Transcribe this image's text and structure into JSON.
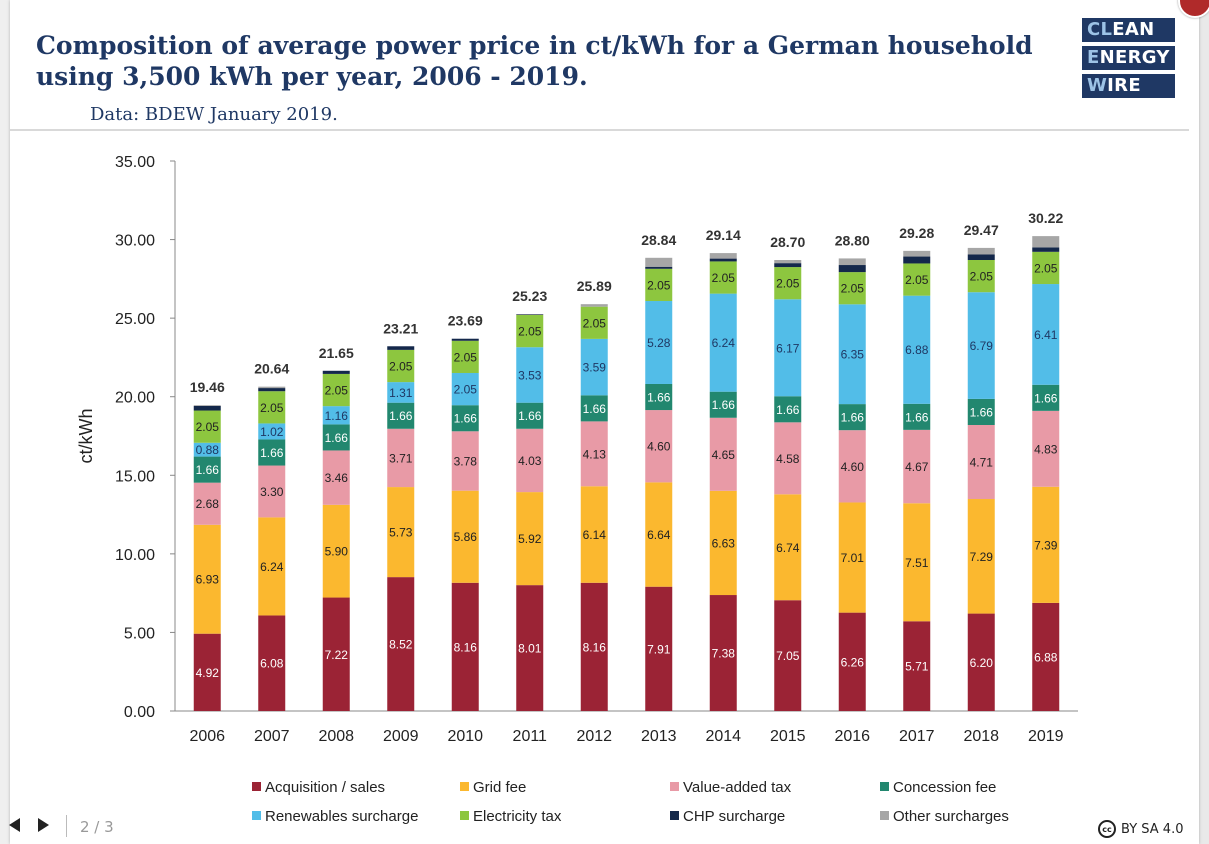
{
  "title": "Composition of average power price in ct/kWh for a German household using 3,500 kWh per year, 2006 - 2019.",
  "subtitle": "Data: BDEW January 2019.",
  "logo": {
    "line1_a": "CL",
    "line1_b": "EAN",
    "line2_a": "E",
    "line2_b": "NERGY",
    "line3_a": "W",
    "line3_b": "IRE"
  },
  "footer": {
    "page": "2 / 3",
    "license": "BY SA 4.0",
    "cc": "cc"
  },
  "chart_data": {
    "type": "bar",
    "stacked": true,
    "ylabel": "ct/kWh",
    "ylim": [
      0,
      35
    ],
    "yticks": [
      "0.00",
      "5.00",
      "10.00",
      "15.00",
      "20.00",
      "25.00",
      "30.00",
      "35.00"
    ],
    "grid": false,
    "legend_position": "bottom",
    "categories": [
      "2006",
      "2007",
      "2008",
      "2009",
      "2010",
      "2011",
      "2012",
      "2013",
      "2014",
      "2015",
      "2016",
      "2017",
      "2018",
      "2019"
    ],
    "totals": [
      "19.46",
      "20.64",
      "21.65",
      "23.21",
      "23.69",
      "25.23",
      "25.89",
      "28.84",
      "29.14",
      "28.70",
      "28.80",
      "29.28",
      "29.47",
      "30.22"
    ],
    "series": [
      {
        "name": "Acquisition / sales",
        "color": "#9b2335",
        "label_color": "#ffffff",
        "values": [
          4.92,
          6.08,
          7.22,
          8.52,
          8.16,
          8.01,
          8.16,
          7.91,
          7.38,
          7.05,
          6.26,
          5.71,
          6.2,
          6.88
        ],
        "labels": [
          "4.92",
          "6.08",
          "7.22",
          "8.52",
          "8.16",
          "8.01",
          "8.16",
          "7.91",
          "7.38",
          "7.05",
          "6.26",
          "5.71",
          "6.20",
          "6.88"
        ]
      },
      {
        "name": "Grid fee",
        "color": "#fbb82f",
        "label_color": "#222222",
        "values": [
          6.93,
          6.24,
          5.9,
          5.73,
          5.86,
          5.92,
          6.14,
          6.64,
          6.63,
          6.74,
          7.01,
          7.51,
          7.29,
          7.39
        ],
        "labels": [
          "6.93",
          "6.24",
          "5.90",
          "5.73",
          "5.86",
          "5.92",
          "6.14",
          "6.64",
          "6.63",
          "6.74",
          "7.01",
          "7.51",
          "7.29",
          "7.39"
        ]
      },
      {
        "name": "Value-added tax",
        "color": "#e89aa6",
        "label_color": "#222222",
        "values": [
          2.68,
          3.3,
          3.46,
          3.71,
          3.78,
          4.03,
          4.13,
          4.6,
          4.65,
          4.58,
          4.6,
          4.67,
          4.71,
          4.83
        ],
        "labels": [
          "2.68",
          "3.30",
          "3.46",
          "3.71",
          "3.78",
          "4.03",
          "4.13",
          "4.60",
          "4.65",
          "4.58",
          "4.60",
          "4.67",
          "4.71",
          "4.83"
        ]
      },
      {
        "name": "Concession fee",
        "color": "#22876f",
        "label_color": "#ffffff",
        "values": [
          1.66,
          1.66,
          1.66,
          1.66,
          1.66,
          1.66,
          1.66,
          1.66,
          1.66,
          1.66,
          1.66,
          1.66,
          1.66,
          1.66
        ],
        "labels": [
          "1.66",
          "1.66",
          "1.66",
          "1.66",
          "1.66",
          "1.66",
          "1.66",
          "1.66",
          "1.66",
          "1.66",
          "1.66",
          "1.66",
          "1.66",
          "1.66"
        ]
      },
      {
        "name": "Renewables surcharge",
        "color": "#52bde8",
        "label_color": "#1f3864",
        "values": [
          0.88,
          1.02,
          1.16,
          1.31,
          2.05,
          3.53,
          3.59,
          5.28,
          6.24,
          6.17,
          6.35,
          6.88,
          6.79,
          6.41
        ],
        "labels": [
          "0.88",
          "1.02",
          "1.16",
          "1.31",
          "2.05",
          "3.53",
          "3.59",
          "5.28",
          "6.24",
          "6.17",
          "6.35",
          "6.88",
          "6.79",
          "6.41"
        ]
      },
      {
        "name": "Electricity tax",
        "color": "#8dc63f",
        "label_color": "#222222",
        "values": [
          2.05,
          2.05,
          2.05,
          2.05,
          2.05,
          2.05,
          2.05,
          2.05,
          2.05,
          2.05,
          2.05,
          2.05,
          2.05,
          2.05
        ],
        "labels": [
          "2.05",
          "2.05",
          "2.05",
          "2.05",
          "2.05",
          "2.05",
          "2.05",
          "2.05",
          "2.05",
          "2.05",
          "2.05",
          "2.05",
          "2.05",
          "2.05"
        ]
      },
      {
        "name": "CHP surcharge",
        "color": "#14284b",
        "label_color": "#ffffff",
        "values": [
          0.29,
          0.2,
          0.2,
          0.23,
          0.13,
          0.03,
          0.0,
          0.13,
          0.18,
          0.25,
          0.45,
          0.44,
          0.35,
          0.28
        ],
        "labels": []
      },
      {
        "name": "Other surcharges",
        "color": "#a6a6a6",
        "label_color": "#222222",
        "values": [
          0.05,
          0.09,
          0.0,
          0.0,
          0.0,
          0.03,
          0.16,
          0.57,
          0.35,
          0.2,
          0.42,
          0.36,
          0.42,
          0.72
        ],
        "labels": []
      }
    ]
  }
}
